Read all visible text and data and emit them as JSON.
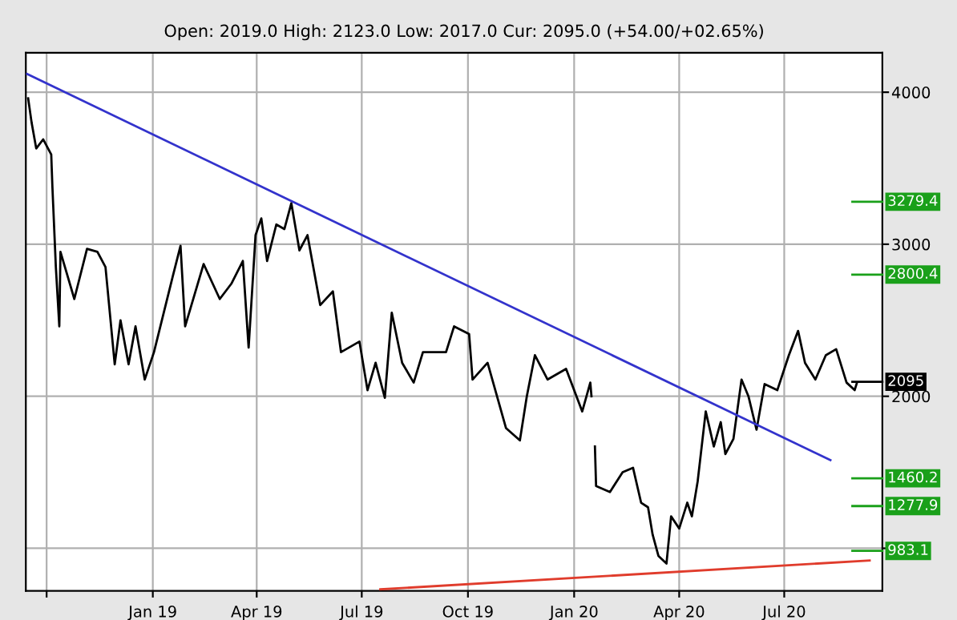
{
  "chart_data": {
    "type": "line",
    "title": "Open: 2019.0 High: 2123.0 Low: 2017.0 Cur: 2095.0 (+54.00/+02.65%)",
    "series": [
      {
        "color": "#000000",
        "x": [
          "2018-09-15",
          "2018-09-18",
          "2018-09-22",
          "2018-09-28",
          "2018-10-05",
          "2018-10-06",
          "2018-10-09",
          "2018-10-12",
          "2018-10-13",
          "2018-10-25",
          "2018-11-05",
          "2018-11-14",
          "2018-11-21",
          "2018-11-29",
          "2018-12-04",
          "2018-12-11",
          "2018-12-17",
          "2018-12-25",
          "2019-01-02",
          "2019-01-18",
          "2019-01-25",
          "2019-01-29",
          "2019-02-14",
          "2019-02-28",
          "2019-03-10",
          "2019-03-20",
          "2019-03-25",
          "2019-03-31",
          "2019-04-05",
          "2019-04-10",
          "2019-04-18",
          "2019-04-25",
          "2019-05-01",
          "2019-05-08",
          "2019-05-15",
          "2019-05-26",
          "2019-06-06",
          "2019-06-13",
          "2019-06-29",
          "2019-07-06",
          "2019-07-13",
          "2019-07-21",
          "2019-07-27",
          "2019-08-05",
          "2019-08-15",
          "2019-08-23",
          "2019-09-12",
          "2019-09-19",
          "2019-10-02",
          "2019-10-05",
          "2019-10-18",
          "2019-11-03",
          "2019-11-15",
          "2019-11-21",
          "2019-11-28",
          "2019-12-09",
          "2019-12-25",
          "2020-01-08",
          "2020-01-15",
          "2020-01-16",
          "2020-01-17",
          "2020-01-19",
          "2020-01-20",
          "2020-02-01",
          "2020-02-12",
          "2020-02-21",
          "2020-02-28",
          "2020-03-05",
          "2020-03-09",
          "2020-03-14",
          "2020-03-21",
          "2020-03-25",
          "2020-04-01",
          "2020-04-08",
          "2020-04-12",
          "2020-04-17",
          "2020-04-24",
          "2020-05-01",
          "2020-05-07",
          "2020-05-11",
          "2020-05-18",
          "2020-05-25",
          "2020-05-31",
          "2020-06-07",
          "2020-06-14",
          "2020-06-25",
          "2020-07-05",
          "2020-07-13",
          "2020-07-19",
          "2020-07-28",
          "2020-08-06",
          "2020-08-15",
          "2020-08-24",
          "2020-08-31",
          "2020-09-02"
        ],
        "values": [
          3960,
          3800,
          3630,
          3690,
          3590,
          3380,
          2850,
          2460,
          2950,
          2640,
          2970,
          2950,
          2850,
          2210,
          2500,
          2210,
          2460,
          2110,
          2290,
          2780,
          2990,
          2460,
          2870,
          2640,
          2740,
          2890,
          2320,
          3060,
          3170,
          2890,
          3130,
          3100,
          3270,
          2960,
          3060,
          2600,
          2690,
          2290,
          2360,
          2040,
          2220,
          1990,
          2550,
          2220,
          2090,
          2290,
          2290,
          2460,
          2410,
          2110,
          2220,
          1790,
          1710,
          2000,
          2270,
          2110,
          2180,
          1900,
          2090,
          2000,
          null,
          1670,
          1410,
          1370,
          1500,
          1530,
          1300,
          1270,
          1090,
          950,
          900,
          1210,
          1130,
          1300,
          1210,
          1440,
          1900,
          1670,
          1830,
          1620,
          1720,
          2110,
          2000,
          1780,
          2080,
          2040,
          2270,
          2430,
          2220,
          2110,
          2270,
          2310,
          2090,
          2040,
          2090
        ]
      },
      {
        "color": "#3333cc",
        "x": [
          "2018-09-14",
          "2020-08-10"
        ],
        "values": [
          4120,
          1580
        ]
      },
      {
        "color": "#e03c2c",
        "x": [
          "2019-07-17",
          "2020-09-13"
        ],
        "values": [
          730,
          920
        ]
      }
    ],
    "xlim": [
      "2018-09-13",
      "2020-09-24"
    ],
    "xticks": [
      {
        "value": "2018-10-01",
        "label": null
      },
      {
        "value": "2019-01-01",
        "label": "Jan 19"
      },
      {
        "value": "2019-04-01",
        "label": "Apr 19"
      },
      {
        "value": "2019-07-01",
        "label": "Jul 19"
      },
      {
        "value": "2019-10-01",
        "label": "Oct 19"
      },
      {
        "value": "2020-01-01",
        "label": "Jan 20"
      },
      {
        "value": "2020-04-01",
        "label": "Apr 20"
      },
      {
        "value": "2020-07-01",
        "label": "Jul 20"
      }
    ],
    "ylim": [
      720,
      4260
    ],
    "yticks": [
      {
        "value": 1000,
        "label": null
      },
      2000,
      3000,
      4000
    ],
    "grid": true,
    "ref_lines": [
      {
        "axis": "y",
        "value": 3279.4,
        "label": "3279.4",
        "color": "#1aa01a"
      },
      {
        "axis": "y",
        "value": 2800.4,
        "label": "2800.4",
        "color": "#1aa01a"
      },
      {
        "axis": "y",
        "value": 2095,
        "label": "2095",
        "color": "#000000"
      },
      {
        "axis": "y",
        "value": 1460.2,
        "label": "1460.2",
        "color": "#1aa01a"
      },
      {
        "axis": "y",
        "value": 1277.9,
        "label": "1277.9",
        "color": "#1aa01a"
      },
      {
        "axis": "y",
        "value": 983.1,
        "label": "983.1",
        "color": "#1aa01a"
      }
    ]
  }
}
